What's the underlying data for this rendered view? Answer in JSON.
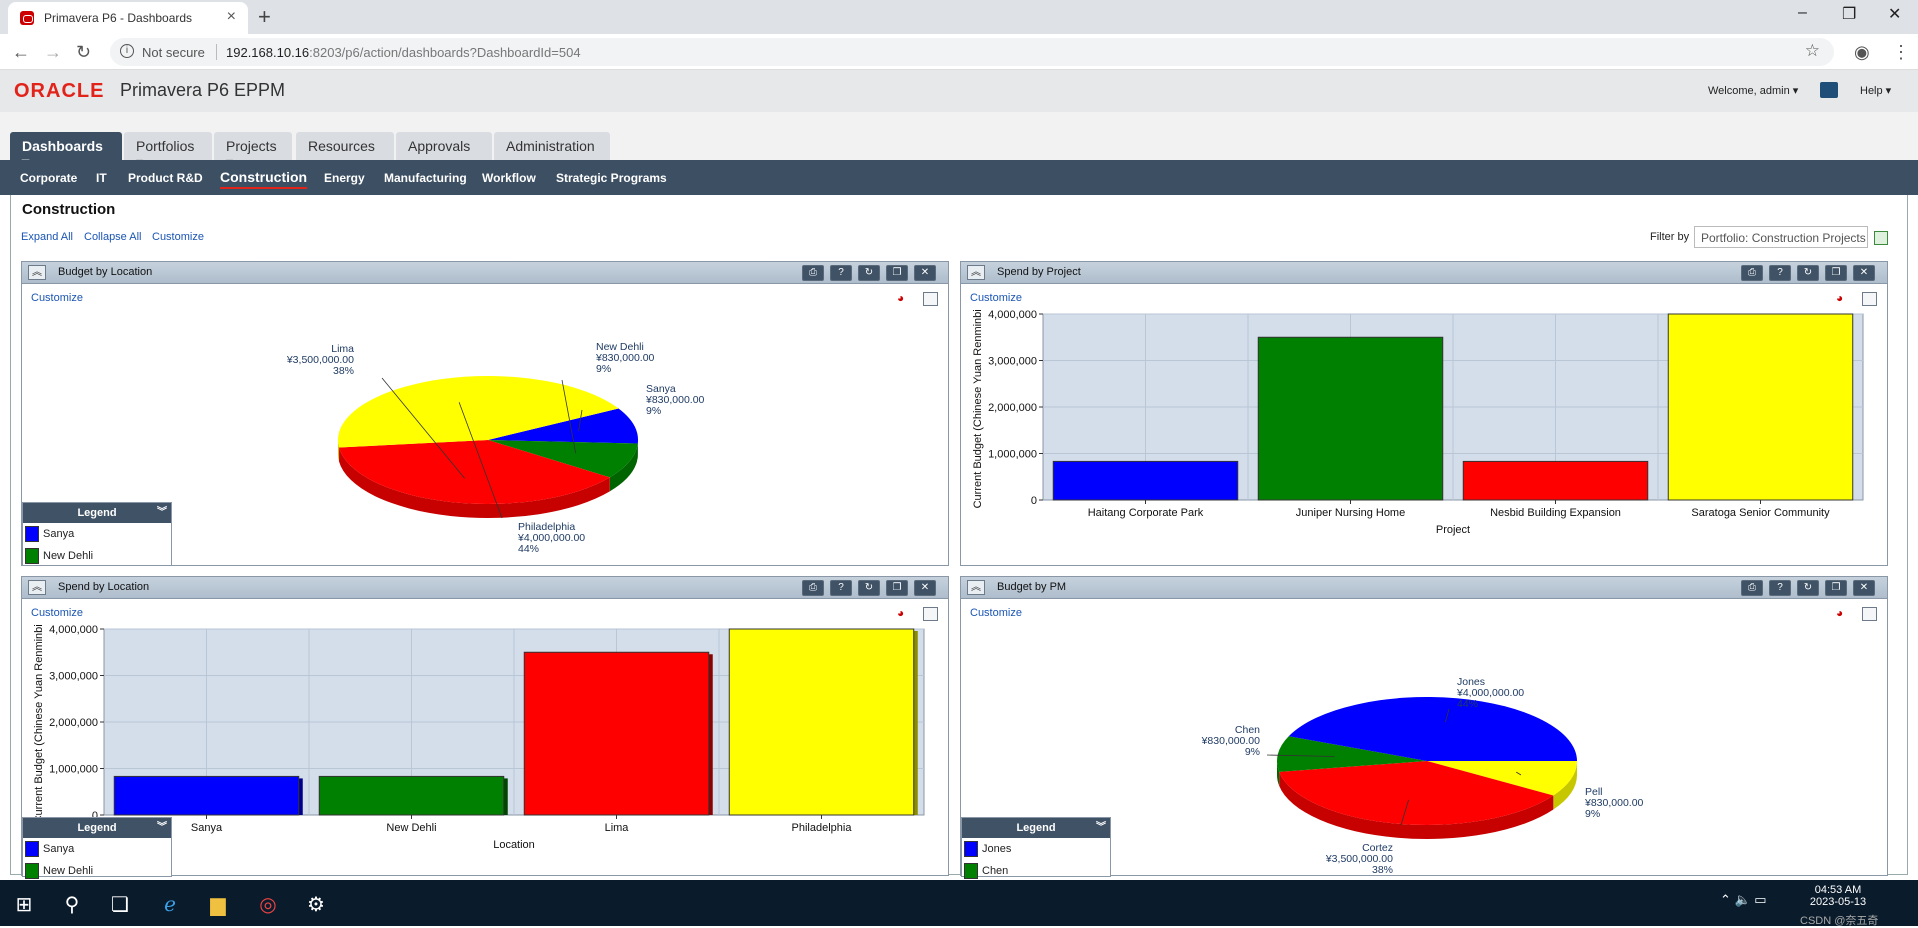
{
  "browser": {
    "tab_title": "Primavera P6 - Dashboards",
    "new_tab": "+",
    "security": "Not secure",
    "url_host": "192.168.10.16",
    "url_rest": ":8203/p6/action/dashboards?DashboardId=504",
    "window_min": "–",
    "window_max": "❐",
    "window_close": "✕"
  },
  "app": {
    "logo": "ORACLE",
    "product": "Primavera P6 EPPM",
    "welcome": "Welcome, admin ▾",
    "help": "Help ▾"
  },
  "main_tabs": [
    {
      "label": "Dashboards ▾",
      "active": true
    },
    {
      "label": "Portfolios ▾"
    },
    {
      "label": "Projects ▾"
    },
    {
      "label": "Resources"
    },
    {
      "label": "Approvals"
    },
    {
      "label": "Administration"
    }
  ],
  "sub_tabs": [
    {
      "label": "Corporate"
    },
    {
      "label": "IT"
    },
    {
      "label": "Product R&D"
    },
    {
      "label": "Construction",
      "active": true
    },
    {
      "label": "Energy"
    },
    {
      "label": "Manufacturing"
    },
    {
      "label": "Workflow"
    },
    {
      "label": "Strategic Programs"
    }
  ],
  "page": {
    "title": "Construction",
    "expand_all": "Expand All",
    "collapse_all": "Collapse All",
    "customize": "Customize",
    "filter_label": "Filter by",
    "filter_value": "Portfolio: Construction Projects"
  },
  "portlets": {
    "budget_by_location": {
      "title": "Budget by Location",
      "customize": "Customize",
      "legend_title": "Legend",
      "legend": [
        {
          "name": "Sanya",
          "color": "#0000ff"
        },
        {
          "name": "New Dehli",
          "color": "#008000"
        }
      ]
    },
    "spend_by_project": {
      "title": "Spend by Project",
      "customize": "Customize"
    },
    "spend_by_location": {
      "title": "Spend by Location",
      "customize": "Customize",
      "legend_title": "Legend",
      "legend": [
        {
          "name": "Sanya",
          "color": "#0000ff"
        },
        {
          "name": "New Dehli",
          "color": "#008000"
        }
      ]
    },
    "budget_by_pm": {
      "title": "Budget by PM",
      "customize": "Customize",
      "legend_title": "Legend",
      "legend": [
        {
          "name": "Jones",
          "color": "#0000ff"
        },
        {
          "name": "Chen",
          "color": "#008000"
        }
      ]
    }
  },
  "chart_data": [
    {
      "type": "pie",
      "title": "Budget by Location",
      "labels": [
        "Sanya",
        "New Dehli",
        "Lima",
        "Philadelphia"
      ],
      "values": [
        830000,
        830000,
        3500000,
        4000000
      ],
      "amount_labels": [
        "¥830,000.00",
        "¥830,000.00",
        "¥3,500,000.00",
        "¥4,000,000.00"
      ],
      "percent_labels": [
        "9%",
        "9%",
        "38%",
        "44%"
      ],
      "colors": [
        "#0000ff",
        "#008000",
        "#ff0000",
        "#ffff00"
      ]
    },
    {
      "type": "bar",
      "title": "Spend by Project",
      "categories": [
        "Haitang Corporate Park",
        "Juniper Nursing Home",
        "Nesbid Building Expansion",
        "Saratoga Senior Community"
      ],
      "values": [
        830000,
        3500000,
        830000,
        4000000
      ],
      "colors": [
        "#0000ff",
        "#008000",
        "#ff0000",
        "#ffff00"
      ],
      "xlabel": "Project",
      "ylabel": "Current Budget (Chinese Yuan Renminbi)",
      "ylim": [
        0,
        4000000
      ],
      "yticks": [
        "0",
        "1,000,000",
        "2,000,000",
        "3,000,000",
        "4,000,000"
      ]
    },
    {
      "type": "bar",
      "title": "Spend by Location",
      "categories": [
        "Sanya",
        "New Dehli",
        "Lima",
        "Philadelphia"
      ],
      "values": [
        830000,
        830000,
        3500000,
        4000000
      ],
      "colors": [
        "#0000ff",
        "#008000",
        "#ff0000",
        "#ffff00"
      ],
      "xlabel": "Location",
      "ylabel": "Current Budget (Chinese Yuan Renminbi)",
      "ylim": [
        0,
        4000000
      ],
      "yticks": [
        "0",
        "1,000,000",
        "2,000,000",
        "3,000,000",
        "4,000,000"
      ]
    },
    {
      "type": "pie",
      "title": "Budget by PM",
      "labels": [
        "Pell",
        "Cortez",
        "Chen",
        "Jones"
      ],
      "values": [
        830000,
        3500000,
        830000,
        4000000
      ],
      "amount_labels": [
        "¥830,000.00",
        "¥3,500,000.00",
        "¥830,000.00",
        "¥4,000,000.00"
      ],
      "percent_labels": [
        "9%",
        "38%",
        "9%",
        "44%"
      ],
      "colors": [
        "#ffff00",
        "#ff0000",
        "#008000",
        "#0000ff"
      ]
    }
  ],
  "taskbar": {
    "time": "04:53 AM",
    "date": "2023-05-13",
    "watermark": "CSDN @奈五奇"
  }
}
